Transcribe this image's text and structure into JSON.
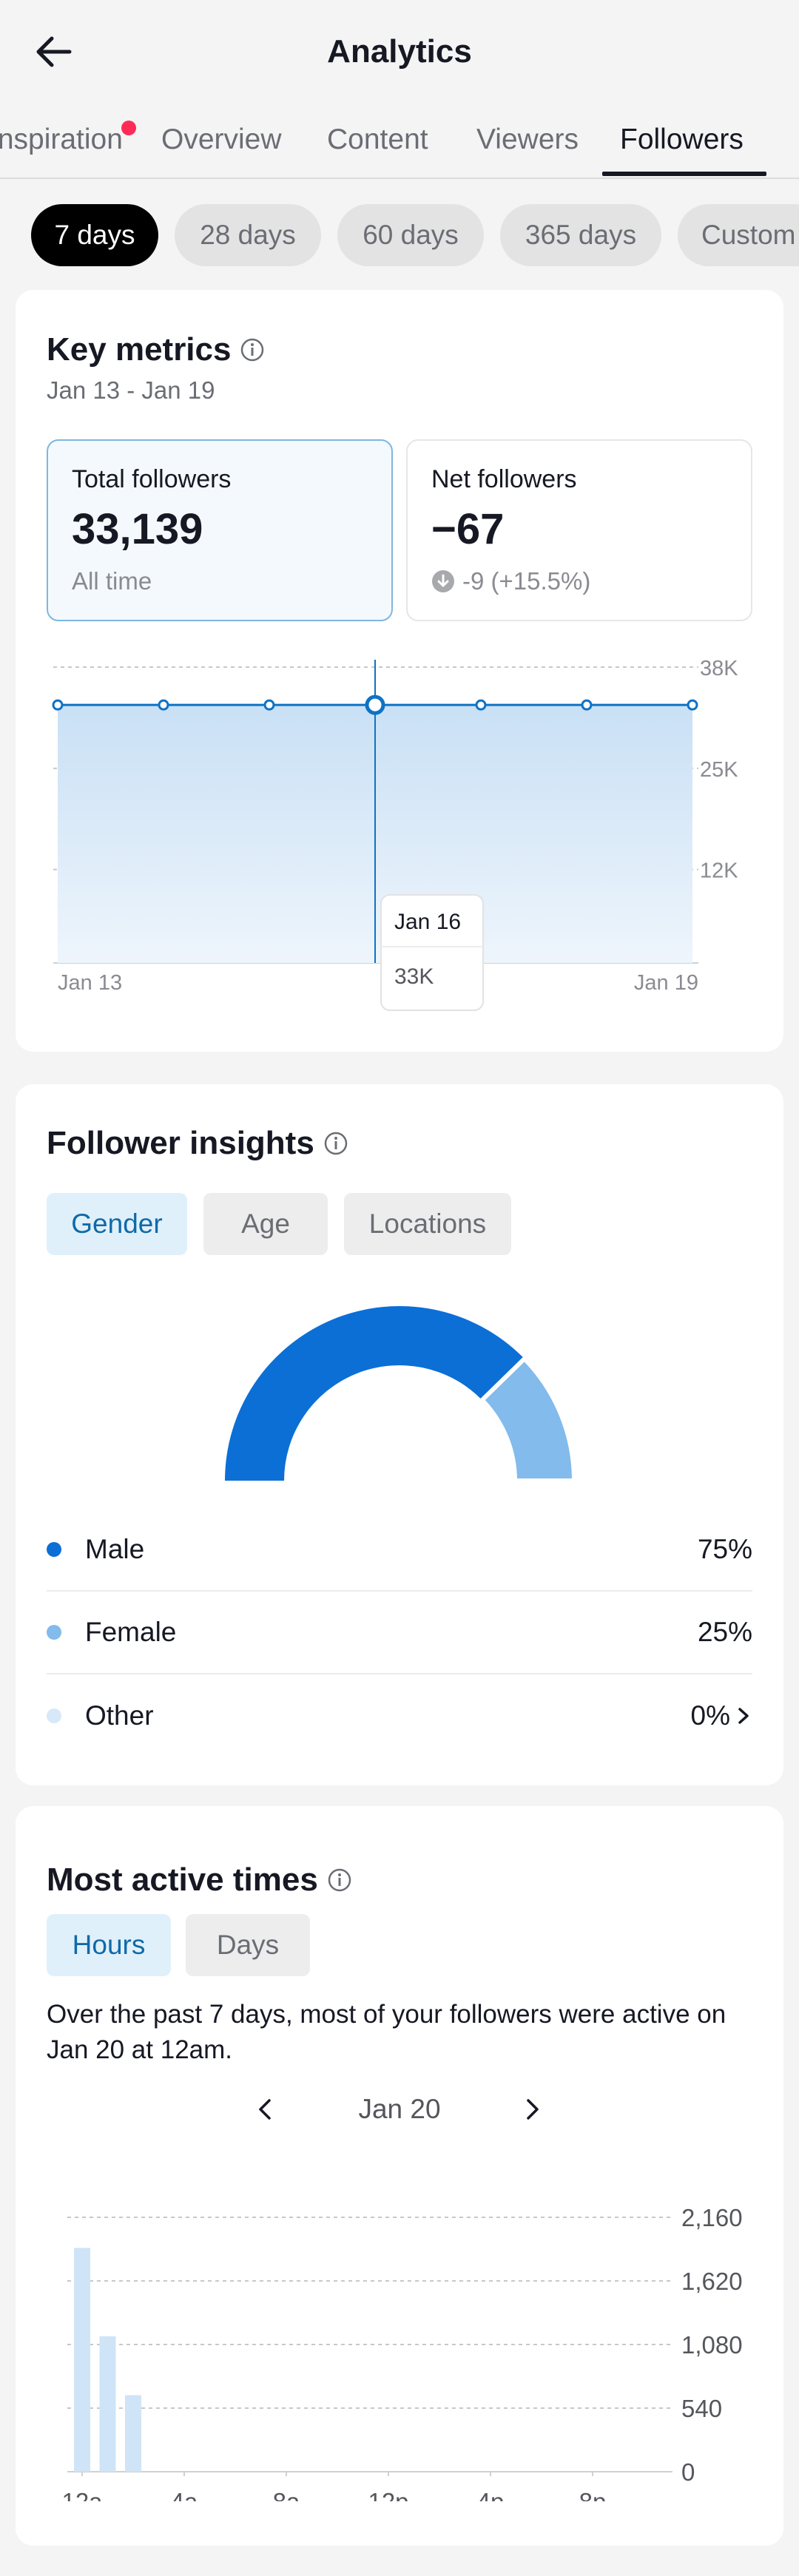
{
  "header": {
    "title": "Analytics"
  },
  "tabs": [
    {
      "label": "Inspiration",
      "active": false,
      "has_dot": true
    },
    {
      "label": "Overview",
      "active": false
    },
    {
      "label": "Content",
      "active": false
    },
    {
      "label": "Viewers",
      "active": false
    },
    {
      "label": "Followers",
      "active": true
    }
  ],
  "ranges": [
    {
      "label": "7 days",
      "active": true
    },
    {
      "label": "28 days",
      "active": false
    },
    {
      "label": "60 days",
      "active": false
    },
    {
      "label": "365 days",
      "active": false
    },
    {
      "label": "Custom",
      "active": false
    }
  ],
  "key_metrics": {
    "title": "Key metrics",
    "date_range": "Jan 13 - Jan 19",
    "total": {
      "label": "Total followers",
      "value": "33,139",
      "sub": "All time"
    },
    "net": {
      "label": "Net followers",
      "value": "−67",
      "sub": "-9 (+15.5%)"
    },
    "chart_data": {
      "type": "area",
      "x": [
        "Jan 13",
        "Jan 14",
        "Jan 15",
        "Jan 16",
        "Jan 17",
        "Jan 18",
        "Jan 19"
      ],
      "values": [
        33139,
        33139,
        33139,
        33139,
        33139,
        33139,
        33139
      ],
      "ylim": [
        0,
        38000
      ],
      "y_ticks": [
        {
          "value": 38000,
          "label": "38K"
        },
        {
          "value": 25000,
          "label": "25K"
        },
        {
          "value": 12000,
          "label": "12K"
        }
      ],
      "x_tick_labels": [
        {
          "index": 0,
          "label": "Jan 13"
        },
        {
          "index": 6,
          "label": "Jan 19"
        }
      ],
      "grid": true,
      "tooltip": {
        "date": "Jan 16",
        "value": "33K",
        "index": 3
      },
      "color": "#0f72c4"
    }
  },
  "insights": {
    "title": "Follower insights",
    "tabs": [
      {
        "label": "Gender",
        "active": true
      },
      {
        "label": "Age",
        "active": false
      },
      {
        "label": "Locations",
        "active": false
      }
    ],
    "chart_data": {
      "type": "pie",
      "style": "half-donut",
      "categories": [
        "Male",
        "Female",
        "Other"
      ],
      "values": [
        75,
        25,
        0
      ],
      "colors": [
        "#0b6fd6",
        "#82bbec",
        "#d7e9f9"
      ]
    },
    "rows": [
      {
        "name": "Male",
        "value": "75%",
        "color": "#0b6fd6",
        "chevron": false
      },
      {
        "name": "Female",
        "value": "25%",
        "color": "#82bbec",
        "chevron": false
      },
      {
        "name": "Other",
        "value": "0%",
        "color": "#d7e9f9",
        "chevron": true
      }
    ]
  },
  "active_times": {
    "title": "Most active times",
    "tabs": [
      {
        "label": "Hours",
        "active": true
      },
      {
        "label": "Days",
        "active": false
      }
    ],
    "description": "Over the past 7 days, most of your followers were active on Jan 20 at 12am.",
    "date": "Jan 20",
    "chart_data": {
      "type": "bar",
      "x": [
        "12a",
        "1a",
        "2a",
        "3a",
        "4a",
        "5a",
        "6a",
        "7a",
        "8a",
        "9a",
        "10a",
        "11a",
        "12p",
        "1p",
        "2p",
        "3p",
        "4p",
        "5p",
        "6p",
        "7p",
        "8p",
        "9p",
        "10p",
        "11p"
      ],
      "values": [
        1900,
        1150,
        650,
        0,
        0,
        0,
        0,
        0,
        0,
        0,
        0,
        0,
        0,
        0,
        0,
        0,
        0,
        0,
        0,
        0,
        0,
        0,
        0,
        0
      ],
      "ylim": [
        0,
        2160
      ],
      "y_ticks": [
        "0",
        "540",
        "1,080",
        "1,620",
        "2,160"
      ],
      "x_tick_labels": [
        "12a",
        "4a",
        "8a",
        "12p",
        "4p",
        "8p"
      ],
      "grid": true,
      "color": "#cfe4f7"
    }
  }
}
